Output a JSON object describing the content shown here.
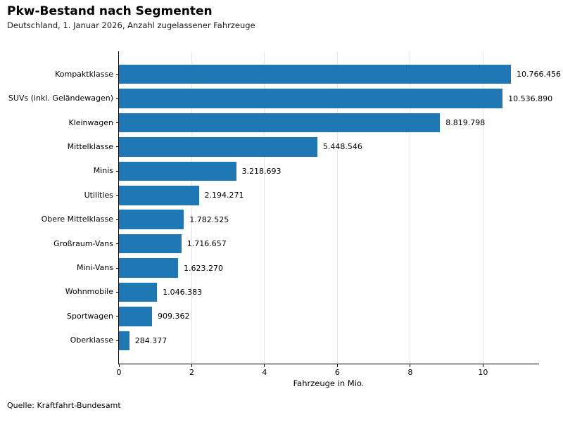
{
  "header": {
    "title": "Pkw-Bestand nach Segmenten",
    "subtitle": "Deutschland, 1. Januar 2026, Anzahl zugelassener Fahrzeuge"
  },
  "chart_data": {
    "type": "bar",
    "orientation": "horizontal",
    "title": "Pkw-Bestand nach Segmenten",
    "subtitle": "Deutschland, 1. Januar 2026, Anzahl zugelassener Fahrzeuge",
    "categories": [
      "Kompaktklasse",
      "SUVs (inkl. Geländewagen)",
      "Kleinwagen",
      "Mittelklasse",
      "Minis",
      "Utilities",
      "Obere Mittelklasse",
      "Großraum-Vans",
      "Mini-Vans",
      "Wohnmobile",
      "Sportwagen",
      "Oberklasse"
    ],
    "values": [
      10766456,
      10536890,
      8819798,
      5448546,
      3218693,
      2194271,
      1782525,
      1716657,
      1623270,
      1046383,
      909362,
      284377
    ],
    "value_labels": [
      "10.766.456",
      "10.536.890",
      "8.819.798",
      "5.448.546",
      "3.218.693",
      "2.194.271",
      "1.782.525",
      "1.716.657",
      "1.623.270",
      "1.046.383",
      "909.362",
      "284.377"
    ],
    "xlabel": "Fahrzeuge in Mio.",
    "xticks": [
      0,
      2,
      4,
      6,
      8,
      10
    ],
    "xlim": [
      0,
      11.54
    ],
    "grid": "vertical-light-gray",
    "legend": "none",
    "bar_color": "#1f77b4",
    "value_unit": "Fahrzeuge",
    "value_scale_for_axis": 1000000
  },
  "footer": {
    "source": "Quelle: Kraftfahrt-Bundesamt"
  }
}
